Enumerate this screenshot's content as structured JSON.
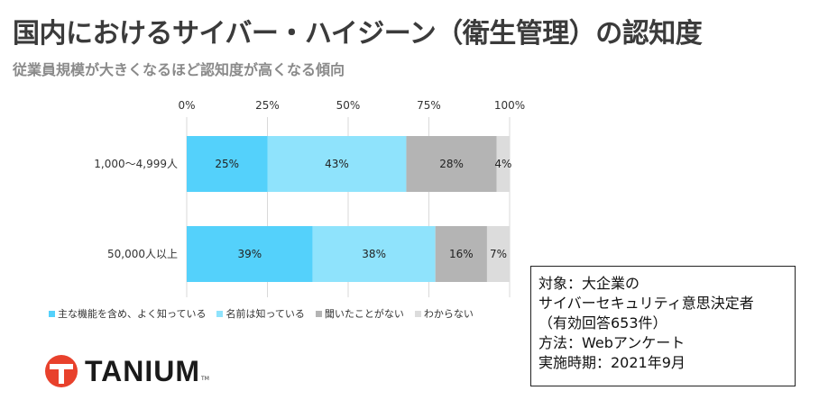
{
  "title": "国内におけるサイバー・ハイジーン（衛生管理）の認知度",
  "subtitle": "従業員規模が大きくなるほど認知度が高くなる傾向",
  "chart_data": {
    "type": "bar",
    "orientation": "horizontal",
    "stacked": true,
    "percent_scale": true,
    "categories": [
      "1,000〜4,999人",
      "50,000人以上"
    ],
    "series": [
      {
        "name": "主な機能を含め、よく知っている",
        "values": [
          25,
          39
        ],
        "color": "#54d1fb"
      },
      {
        "name": "名前は知っている",
        "values": [
          43,
          38
        ],
        "color": "#8fe3fc"
      },
      {
        "name": "聞いたことがない",
        "values": [
          28,
          16
        ],
        "color": "#b4b4b4"
      },
      {
        "name": "わからない",
        "values": [
          4,
          7
        ],
        "color": "#dcdcdc"
      }
    ],
    "value_labels": [
      [
        "25%",
        "43%",
        "28%",
        "4%"
      ],
      [
        "39%",
        "38%",
        "16%",
        "7%"
      ]
    ],
    "xlim": [
      0,
      100
    ],
    "xticks": [
      "0%",
      "25%",
      "50%",
      "75%",
      "100%"
    ],
    "grid": true,
    "legend_position": "bottom-left"
  },
  "info": {
    "line1": "対象：大企業の",
    "line2": "サイバーセキュリティ意思決定者",
    "line3": "（有効回答653件）",
    "line4": "方法：Webアンケート",
    "line5": "実施時期：2021年9月"
  },
  "logo": {
    "text": "TANIUM",
    "tm": "TM",
    "color": "#e8412c"
  }
}
